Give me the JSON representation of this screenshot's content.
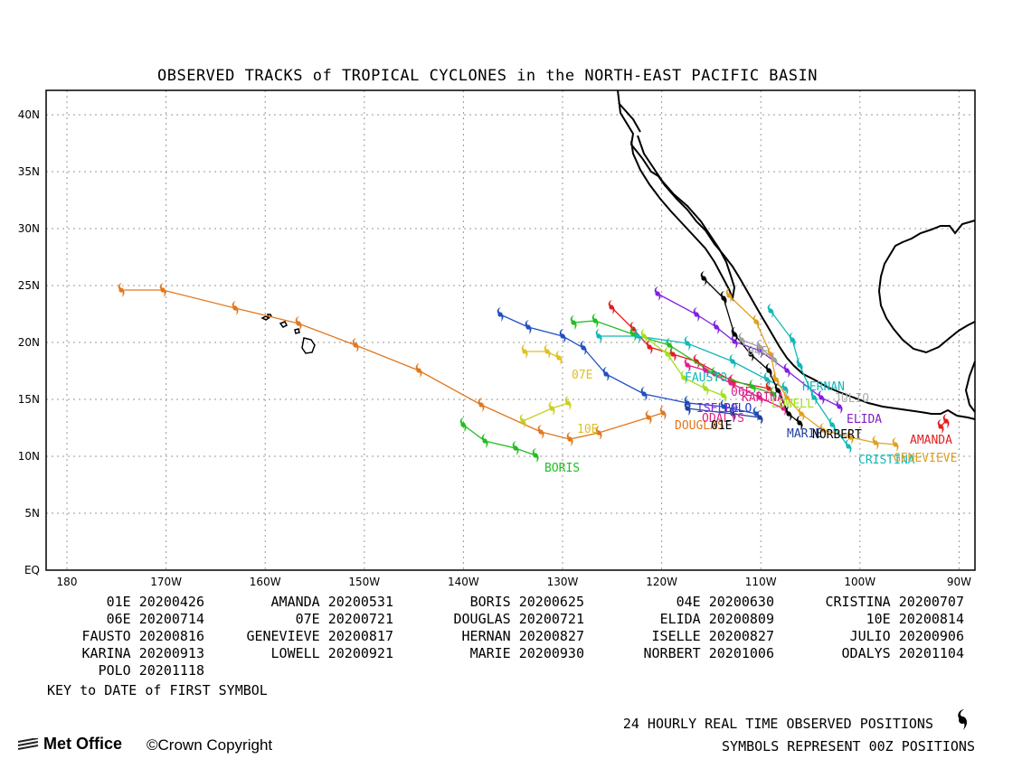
{
  "title": "OBSERVED TRACKS of TROPICAL CYCLONES in the NORTH-EAST PACIFIC BASIN",
  "axes": {
    "lat_labels": [
      "EQ",
      "5N",
      "10N",
      "15N",
      "20N",
      "25N",
      "30N",
      "35N",
      "40N"
    ],
    "lon_labels": [
      "180",
      "170W",
      "160W",
      "150W",
      "140W",
      "130W",
      "120W",
      "110W",
      "100W",
      "90W"
    ]
  },
  "storm_labels": [
    {
      "name": "BORIS",
      "color": "#1fbf1f"
    },
    {
      "name": "07E",
      "color": "#e0c020"
    },
    {
      "name": "10E",
      "color": "#e0c020"
    },
    {
      "name": "DOUGLAS",
      "color": "#e07820"
    },
    {
      "name": "FAUSTO",
      "color": "#10b8b8"
    },
    {
      "name": "06E",
      "color": "#e0208a"
    },
    {
      "name": "KARINA",
      "color": "#e0208a"
    },
    {
      "name": "POLO",
      "color": "#2040c0"
    },
    {
      "name": "ISELLE",
      "color": "#8020e0"
    },
    {
      "name": "ODALYS",
      "color": "#e0208a"
    },
    {
      "name": "01E",
      "color": "#000000"
    },
    {
      "name": "04E",
      "color": "#a0a0a0"
    },
    {
      "name": "HERNAN",
      "color": "#10b8b8"
    },
    {
      "name": "LOWELL",
      "color": "#a0e020"
    },
    {
      "name": "JULIO",
      "color": "#b0b0b0"
    },
    {
      "name": "ELIDA",
      "color": "#8020c0"
    },
    {
      "name": "MARIE",
      "color": "#2040a0"
    },
    {
      "name": "NORBERT",
      "color": "#000000"
    },
    {
      "name": "AMANDA",
      "color": "#e02020"
    },
    {
      "name": "CRISTINA",
      "color": "#10b8b8"
    },
    {
      "name": "GENEVIEVE",
      "color": "#e0a020"
    }
  ],
  "legend_rows": [
    [
      "01E 20200426",
      "AMANDA 20200531",
      "BORIS 20200625",
      "04E 20200630",
      "CRISTINA 20200707"
    ],
    [
      "06E 20200714",
      "07E 20200721",
      "DOUGLAS 20200721",
      "ELIDA 20200809",
      "10E 20200814"
    ],
    [
      "FAUSTO 20200816",
      "GENEVIEVE 20200817",
      "HERNAN 20200827",
      "ISELLE 20200827",
      "JULIO 20200906"
    ],
    [
      "KARINA 20200913",
      "LOWELL 20200921",
      "MARIE 20200930",
      "NORBERT 20201006",
      "ODALYS 20201104"
    ],
    [
      "POLO 20201118"
    ]
  ],
  "key_text": "KEY to DATE of FIRST SYMBOL",
  "footer_line1": "24 HOURLY REAL TIME OBSERVED POSITIONS",
  "footer_line2": "SYMBOLS REPRESENT 00Z POSITIONS",
  "brand": "Met Office",
  "copyright": "©Crown Copyright",
  "colors": {
    "douglas": "#e07820",
    "boris": "#1fbf1f",
    "frame": "#000000",
    "grid": "#808080"
  }
}
